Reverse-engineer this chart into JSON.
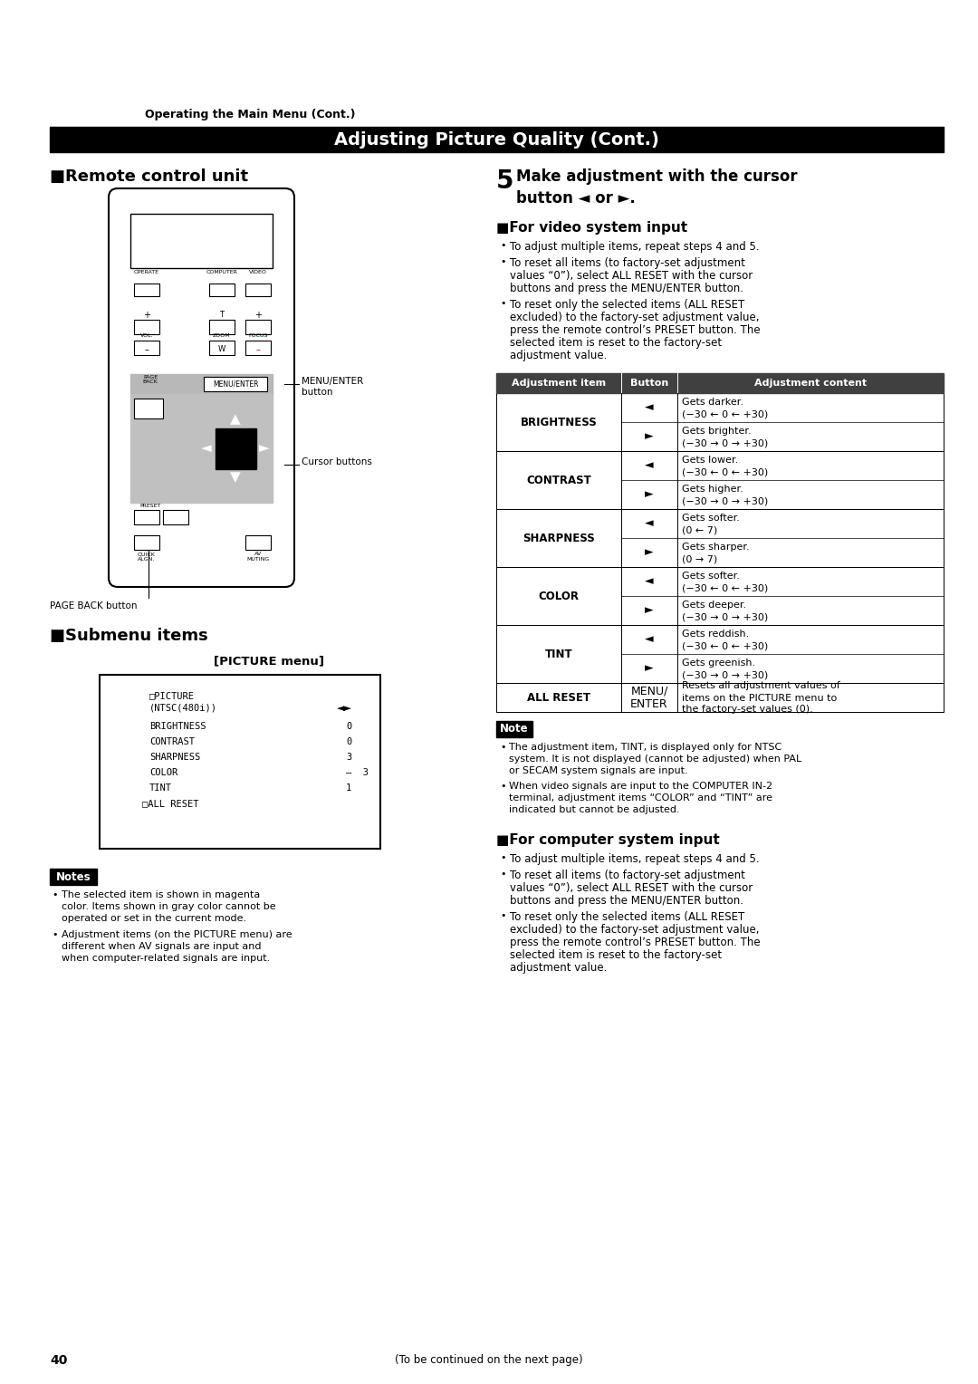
{
  "page_num": "40",
  "bg_color": "#ffffff",
  "header_text": "Operating the Main Menu (Cont.)",
  "title_bar_text": "Adjusting Picture Quality (Cont.)",
  "title_bar_bg": "#000000",
  "title_bar_text_color": "#ffffff",
  "section1_title": "■Remote control unit",
  "video_section_title": "■For video system input",
  "video_bullets": [
    "To adjust multiple items, repeat steps 4 and 5.",
    "To reset all items (to factory-set adjustment values “0”), select ALL RESET with the cursor buttons and press the MENU/ENTER button.",
    "To reset only the selected items (ALL RESET excluded) to the factory-set adjustment value, press the remote control’s PRESET button. The selected item is reset to the factory-set adjustment value."
  ],
  "table_headers": [
    "Adjustment item",
    "Button",
    "Adjustment content"
  ],
  "row_groups": [
    {
      "label": "BRIGHTNESS",
      "rows": [
        [
          "◄",
          "Gets darker.\n(−30 ← 0 ← +30)"
        ],
        [
          "►",
          "Gets brighter.\n(−30 → 0 → +30)"
        ]
      ]
    },
    {
      "label": "CONTRAST",
      "rows": [
        [
          "◄",
          "Gets lower.\n(−30 ← 0 ← +30)"
        ],
        [
          "►",
          "Gets higher.\n(−30 → 0 → +30)"
        ]
      ]
    },
    {
      "label": "SHARPNESS",
      "rows": [
        [
          "◄",
          "Gets softer.\n(0 ← 7)"
        ],
        [
          "►",
          "Gets sharper.\n(0 → 7)"
        ]
      ]
    },
    {
      "label": "COLOR",
      "rows": [
        [
          "◄",
          "Gets softer.\n(−30 ← 0 ← +30)"
        ],
        [
          "►",
          "Gets deeper.\n(−30 → 0 → +30)"
        ]
      ]
    },
    {
      "label": "TINT",
      "rows": [
        [
          "◄",
          "Gets reddish.\n(−30 ← 0 ← +30)"
        ],
        [
          "►",
          "Gets greenish.\n(−30 → 0 → +30)"
        ]
      ]
    },
    {
      "label": "ALL RESET",
      "rows": [
        [
          "MENU/\nENTER",
          "Resets all adjustment values of\nitems on the PICTURE menu to\nthe factory-set values (0)."
        ]
      ]
    }
  ],
  "note_video_bullets": [
    "The adjustment item, TINT, is displayed only for NTSC system. It is not displayed (cannot be adjusted) when PAL or SECAM system signals are input.",
    "When video signals are input to the COMPUTER IN-2 terminal, adjustment items “COLOR” and “TINT” are indicated but cannot be adjusted."
  ],
  "computer_section_title": "■For computer system input",
  "computer_bullets": [
    "To adjust multiple items, repeat steps 4 and 5.",
    "To reset all items (to factory-set adjustment values “0”), select ALL RESET with the cursor buttons and press the MENU/ENTER button.",
    "To reset only the selected items (ALL RESET excluded) to the factory-set adjustment value, press the remote control’s PRESET button. The selected item is reset to the factory-set adjustment value."
  ],
  "submenu_title": "■Submenu items",
  "picture_menu_label": "[PICTURE menu]",
  "notes_left_bullets": [
    "The selected item is shown in magenta color. Items shown in gray color cannot be operated or set in the current mode.",
    "Adjustment items (on the PICTURE menu) are different when AV signals are input and when computer-related signals are input."
  ],
  "footer_text": "(To be continued on the next page)"
}
